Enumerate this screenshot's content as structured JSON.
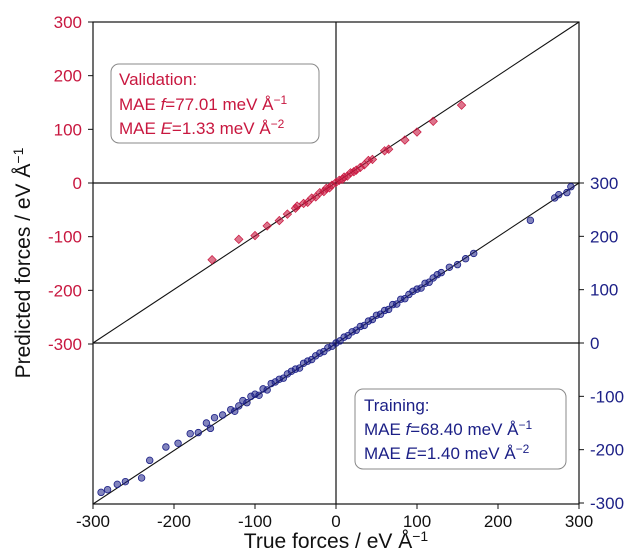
{
  "chart_data": {
    "type": "scatter",
    "xlabel": "True forces / eV Å",
    "xlabel_sup": "−1",
    "ylabel": "Predicted forces / eV Å",
    "ylabel_sup": "−1",
    "xlim": [
      -300,
      300
    ],
    "ylim_left": [
      -300,
      300
    ],
    "ylim_right": [
      -300,
      300
    ],
    "xticks": [
      "-300",
      "-200",
      "-100",
      "0",
      "100",
      "200",
      "300"
    ],
    "yticks_left": [
      "300",
      "200",
      "100",
      "0",
      "-100",
      "-200",
      "-300"
    ],
    "yticks_right": [
      "300",
      "200",
      "100",
      "0",
      "-100",
      "-200",
      "-300"
    ],
    "colors": {
      "validation": "#c8173f",
      "training": "#1b1f86",
      "axis": "#111111"
    },
    "series": [
      {
        "name": "Validation",
        "marker": "diamond",
        "axis": "left-top-panel",
        "annotation": [
          "Validation:",
          "MAE ",
          "f",
          "=77.01 meV Å",
          "−1",
          "MAE ",
          "E",
          "=1.33 meV Å",
          "−2"
        ],
        "points": [
          [
            -153,
            -143
          ],
          [
            -120,
            -105
          ],
          [
            -100,
            -98
          ],
          [
            -85,
            -80
          ],
          [
            -70,
            -70
          ],
          [
            -60,
            -58
          ],
          [
            -50,
            -47
          ],
          [
            -48,
            -43
          ],
          [
            -40,
            -38
          ],
          [
            -35,
            -36
          ],
          [
            -30,
            -28
          ],
          [
            -25,
            -26
          ],
          [
            -20,
            -18
          ],
          [
            -15,
            -16
          ],
          [
            -12,
            -10
          ],
          [
            -8,
            -9
          ],
          [
            -5,
            -4
          ],
          [
            0,
            1
          ],
          [
            4,
            5
          ],
          [
            8,
            7
          ],
          [
            10,
            11
          ],
          [
            14,
            13
          ],
          [
            18,
            19
          ],
          [
            22,
            21
          ],
          [
            25,
            24
          ],
          [
            30,
            29
          ],
          [
            35,
            34
          ],
          [
            40,
            42
          ],
          [
            45,
            44
          ],
          [
            60,
            60
          ],
          [
            65,
            63
          ],
          [
            85,
            80
          ],
          [
            100,
            95
          ],
          [
            120,
            115
          ],
          [
            155,
            145
          ]
        ]
      },
      {
        "name": "Training",
        "marker": "circle",
        "axis": "right-bottom-panel",
        "annotation": [
          "Training:",
          "MAE ",
          "f",
          "=68.40 meV Å",
          "−1",
          "MAE ",
          "E",
          "=1.40 meV Å",
          "−2"
        ],
        "points": [
          [
            -290,
            -280
          ],
          [
            -282,
            -275
          ],
          [
            -270,
            -265
          ],
          [
            -240,
            -253
          ],
          [
            -260,
            -260
          ],
          [
            -230,
            -220
          ],
          [
            -210,
            -195
          ],
          [
            -195,
            -188
          ],
          [
            -180,
            -170
          ],
          [
            -170,
            -168
          ],
          [
            -160,
            -150
          ],
          [
            -155,
            -160
          ],
          [
            -150,
            -140
          ],
          [
            -140,
            -135
          ],
          [
            -130,
            -125
          ],
          [
            -125,
            -128
          ],
          [
            -120,
            -118
          ],
          [
            -115,
            -108
          ],
          [
            -110,
            -112
          ],
          [
            -105,
            -100
          ],
          [
            -100,
            -96
          ],
          [
            -95,
            -98
          ],
          [
            -90,
            -86
          ],
          [
            -85,
            -88
          ],
          [
            -80,
            -76
          ],
          [
            -75,
            -73
          ],
          [
            -70,
            -68
          ],
          [
            -65,
            -66
          ],
          [
            -60,
            -58
          ],
          [
            -55,
            -53
          ],
          [
            -50,
            -49
          ],
          [
            -45,
            -47
          ],
          [
            -40,
            -38
          ],
          [
            -35,
            -34
          ],
          [
            -30,
            -31
          ],
          [
            -25,
            -24
          ],
          [
            -20,
            -19
          ],
          [
            -15,
            -16
          ],
          [
            -10,
            -9
          ],
          [
            -5,
            -6
          ],
          [
            0,
            0
          ],
          [
            5,
            4
          ],
          [
            10,
            11
          ],
          [
            15,
            14
          ],
          [
            20,
            21
          ],
          [
            25,
            24
          ],
          [
            30,
            31
          ],
          [
            35,
            33
          ],
          [
            40,
            41
          ],
          [
            45,
            44
          ],
          [
            50,
            52
          ],
          [
            55,
            54
          ],
          [
            60,
            61
          ],
          [
            65,
            63
          ],
          [
            70,
            72
          ],
          [
            75,
            73
          ],
          [
            80,
            82
          ],
          [
            85,
            83
          ],
          [
            90,
            91
          ],
          [
            95,
            97
          ],
          [
            100,
            101
          ],
          [
            105,
            103
          ],
          [
            110,
            112
          ],
          [
            115,
            114
          ],
          [
            120,
            122
          ],
          [
            125,
            128
          ],
          [
            130,
            132
          ],
          [
            140,
            142
          ],
          [
            150,
            147
          ],
          [
            160,
            158
          ],
          [
            170,
            168
          ],
          [
            240,
            230
          ],
          [
            270,
            272
          ],
          [
            275,
            278
          ],
          [
            285,
            282
          ],
          [
            290,
            293
          ]
        ]
      }
    ]
  }
}
